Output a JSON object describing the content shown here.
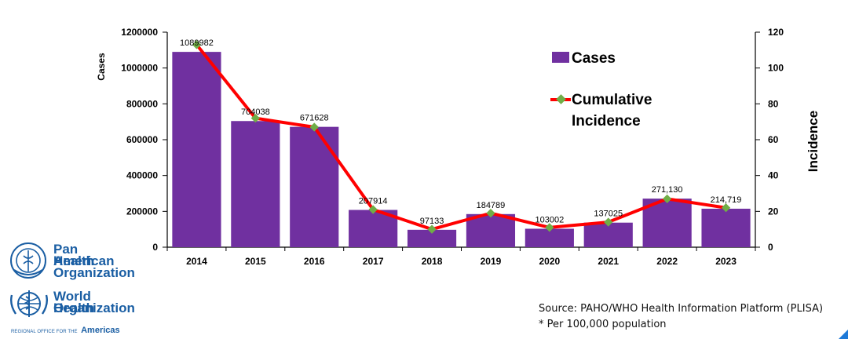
{
  "chart_data": {
    "type": "bar",
    "categories": [
      "2014",
      "2015",
      "2016",
      "2017",
      "2018",
      "2019",
      "2020",
      "2021",
      "2022",
      "2023"
    ],
    "series": [
      {
        "name": "Cases",
        "type": "bar",
        "axis": "left",
        "color": "#7030a0",
        "values": [
          1089982,
          704038,
          671628,
          207914,
          97133,
          184789,
          103002,
          137025,
          271130,
          214719
        ],
        "labels": [
          "1089982",
          "704038",
          "671628",
          "207914",
          "97133",
          "184789",
          "103002",
          "137025",
          "271,130",
          "214,719"
        ]
      },
      {
        "name": "Cumulative Incidence",
        "type": "line",
        "axis": "right",
        "color": "#ff0000",
        "marker_color": "#70ad47",
        "values": [
          113,
          72,
          67,
          21,
          10,
          19,
          11,
          14,
          27,
          22
        ]
      }
    ],
    "ylabel": "Cases",
    "ylabel2": "Incidence",
    "ylim": [
      0,
      1200000
    ],
    "ylim2": [
      0,
      120
    ],
    "yticks": [
      0,
      200000,
      400000,
      600000,
      800000,
      1000000,
      1200000
    ],
    "yticks2": [
      0,
      20,
      40,
      60,
      80,
      100,
      120
    ],
    "legend": {
      "cases": "Cases",
      "incidence_line1": "Cumulative",
      "incidence_line2": "Incidence",
      "position": "top-right"
    }
  },
  "source": {
    "line1": "Source: PAHO/WHO Health Information Platform (PLISA)",
    "line2": "* Per 100,000 population"
  },
  "logos": {
    "paho": [
      "Pan American",
      "Health",
      "Organization"
    ],
    "who": [
      "World Health",
      "Organization"
    ],
    "regional_small": "REGIONAL OFFICE FOR THE",
    "regional_big": "Americas"
  },
  "colors": {
    "bar": "#7030a0",
    "line": "#ff0000",
    "marker": "#70ad47",
    "brand": "#1a5ea3"
  }
}
